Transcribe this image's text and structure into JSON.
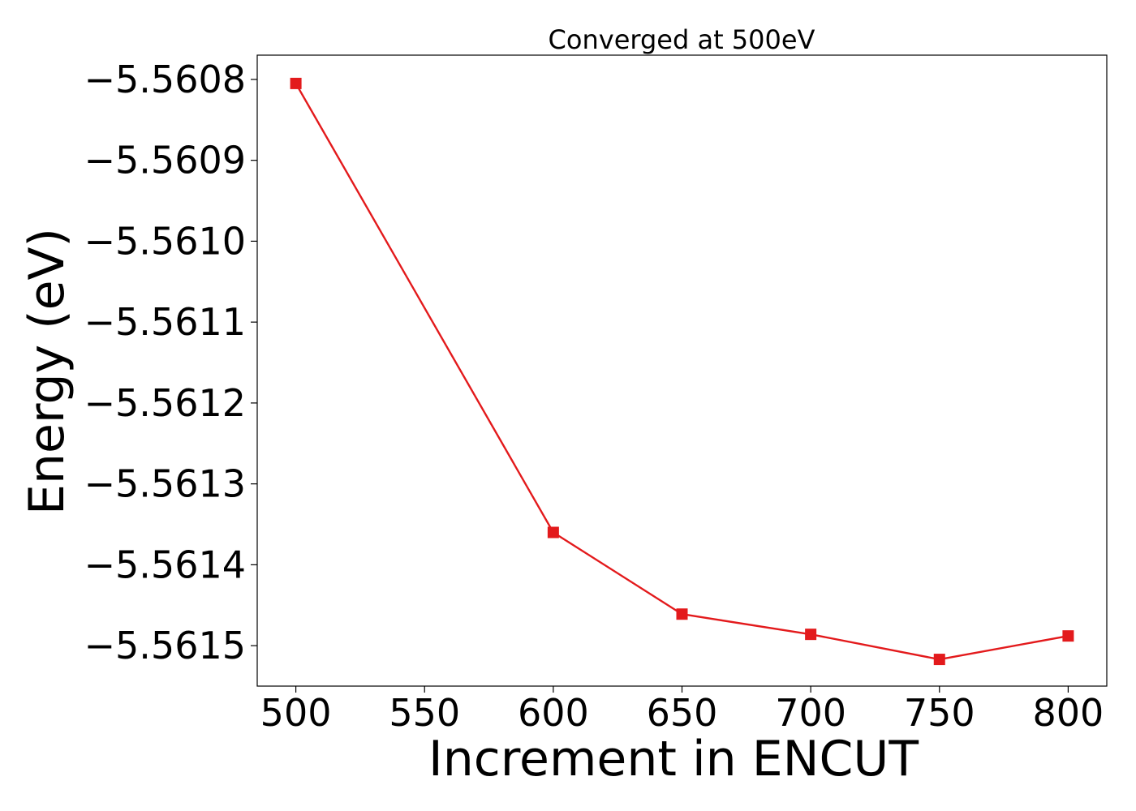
{
  "chart_data": {
    "type": "line",
    "title": "Converged at 500eV",
    "xlabel": "Increment in ENCUT",
    "ylabel": "Energy (eV)",
    "xlim": [
      485,
      815
    ],
    "ylim": [
      -5.56155,
      -5.56077
    ],
    "grid": false,
    "x_ticks": [
      500,
      550,
      600,
      650,
      700,
      750,
      800
    ],
    "x_tick_labels": [
      "500",
      "550",
      "600",
      "650",
      "700",
      "750",
      "800"
    ],
    "y_ticks": [
      -5.5608,
      -5.5609,
      -5.561,
      -5.5611,
      -5.5612,
      -5.5613,
      -5.5614,
      -5.5615
    ],
    "y_tick_labels": [
      "−5.5608",
      "−5.5609",
      "−5.5610",
      "−5.5611",
      "−5.5612",
      "−5.5613",
      "−5.5614",
      "−5.5615"
    ],
    "series": [
      {
        "color": "#e31a1c",
        "marker": "square",
        "x": [
          500,
          600,
          650,
          700,
          750,
          800
        ],
        "y": [
          -5.560805,
          -5.56136,
          -5.561461,
          -5.561486,
          -5.561517,
          -5.561488
        ]
      }
    ]
  }
}
